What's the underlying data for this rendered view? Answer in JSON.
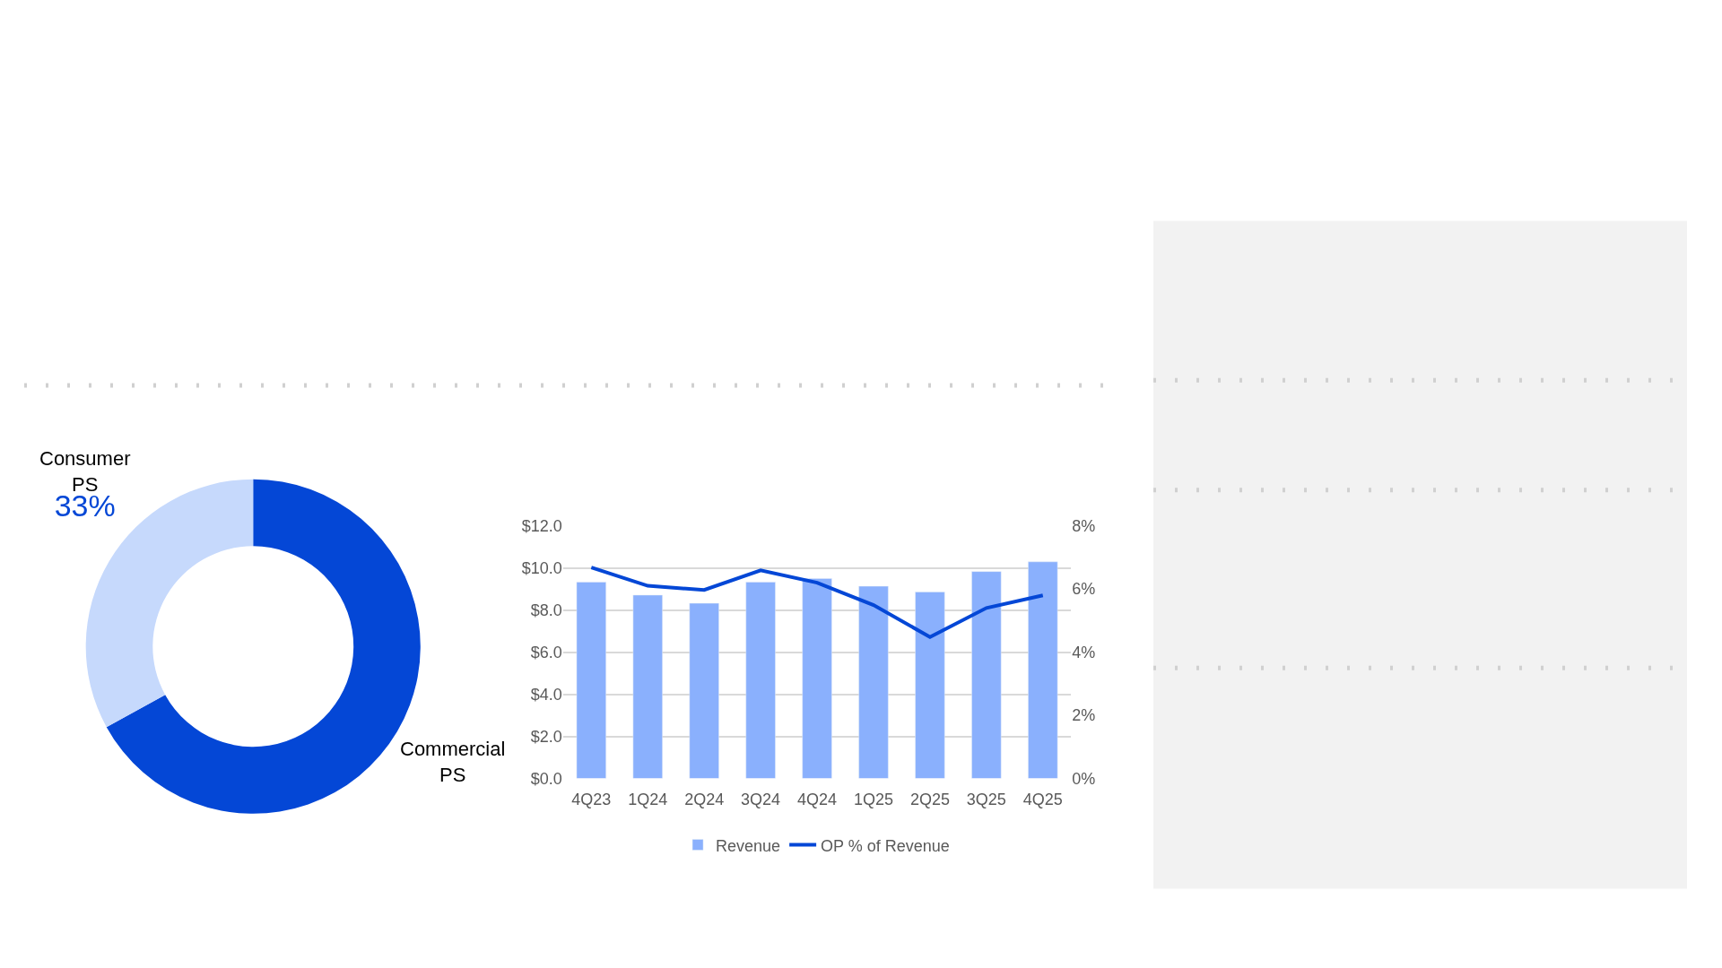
{
  "chart_data": [
    {
      "type": "donut",
      "categories": [
        "Commercial PS",
        "Consumer PS"
      ],
      "values": [
        67,
        33
      ],
      "colors": [
        "#0447d6",
        "#c6d9fc"
      ],
      "value_labels": [
        null,
        "33%"
      ]
    },
    {
      "type": "bar",
      "categories": [
        "4Q23",
        "1Q24",
        "2Q24",
        "3Q24",
        "4Q24",
        "1Q25",
        "2Q25",
        "3Q25",
        "4Q25"
      ],
      "series": [
        {
          "name": "Revenue",
          "type": "bar",
          "color": "#8ab0fd",
          "values": [
            9.33,
            8.71,
            8.32,
            9.33,
            9.5,
            9.13,
            8.86,
            9.83,
            10.29
          ]
        },
        {
          "name": "OP % of Revenue",
          "type": "line",
          "axis": "y2",
          "color": "#0447d6",
          "values": [
            6.68,
            6.1,
            5.97,
            6.59,
            6.2,
            5.49,
            4.48,
            5.4,
            5.8
          ]
        }
      ],
      "ylim": [
        0,
        12
      ],
      "yticks": [
        {
          "value": 0,
          "label": "$0.0"
        },
        {
          "value": 2,
          "label": "$2.0"
        },
        {
          "value": 4,
          "label": "$4.0"
        },
        {
          "value": 6,
          "label": "$6.0"
        },
        {
          "value": 8,
          "label": "$8.0"
        },
        {
          "value": 10,
          "label": "$10.0"
        },
        {
          "value": 12,
          "label": "$12.0"
        }
      ],
      "y2lim": [
        0,
        8
      ],
      "y2ticks": [
        {
          "value": 0,
          "label": "0%"
        },
        {
          "value": 2,
          "label": "2%"
        },
        {
          "value": 4,
          "label": "4%"
        },
        {
          "value": 6,
          "label": "6%"
        },
        {
          "value": 8,
          "label": "8%"
        }
      ],
      "grid": "y",
      "legend": "bottom",
      "marker": "none",
      "line_style": "solid"
    }
  ]
}
